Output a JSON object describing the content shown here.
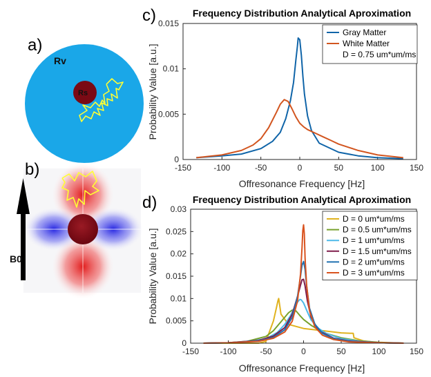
{
  "panels": {
    "a": {
      "letter": "a)",
      "outer_label": "Rv",
      "inner_label": "Rs",
      "outer_color": "#1aa7e8",
      "inner_color": "#7a0a14",
      "walk_color": "#ffff33"
    },
    "b": {
      "letter": "b)",
      "field_label": "B0"
    },
    "c": {
      "letter": "c)"
    },
    "d": {
      "letter": "d)"
    }
  },
  "chart_data": [
    {
      "type": "line",
      "title": "Frequency Distribution Analytical Aproximation",
      "xlabel": "Offresonance Frequency [Hz]",
      "ylabel": "Probability Value [a.u.]",
      "xlim": [
        -150,
        150
      ],
      "ylim": [
        0,
        0.015
      ],
      "xticks": [
        "-150",
        "-100",
        "-50",
        "0",
        "50",
        "100",
        "150"
      ],
      "yticks": [
        "0",
        "0.005",
        "0.01",
        "0.015"
      ],
      "grid": false,
      "legend_position": "top-right",
      "legend_note": "D = 0.75 um*um/ms",
      "series": [
        {
          "name": "Gray Matter",
          "color": "#0f64a8",
          "x": [
            -133,
            -100,
            -75,
            -50,
            -35,
            -25,
            -18,
            -12,
            -8,
            -5,
            -3,
            -2,
            0,
            2,
            4,
            6,
            10,
            15,
            25,
            50,
            75,
            100,
            133
          ],
          "y": [
            0.0002,
            0.0004,
            0.0006,
            0.0012,
            0.002,
            0.003,
            0.0045,
            0.0065,
            0.0085,
            0.011,
            0.0125,
            0.0134,
            0.0132,
            0.0115,
            0.0092,
            0.0072,
            0.0048,
            0.0032,
            0.0018,
            0.0008,
            0.0004,
            0.0002,
            0.0001
          ]
        },
        {
          "name": "White Matter",
          "color": "#d2551f",
          "x": [
            -133,
            -100,
            -75,
            -60,
            -50,
            -40,
            -30,
            -25,
            -20,
            -15,
            -10,
            -5,
            0,
            5,
            10,
            20,
            30,
            40,
            50,
            75,
            100,
            133
          ],
          "y": [
            0.0002,
            0.0005,
            0.001,
            0.0016,
            0.0023,
            0.0035,
            0.0052,
            0.0061,
            0.0066,
            0.0064,
            0.0056,
            0.0047,
            0.004,
            0.0036,
            0.0033,
            0.0029,
            0.0025,
            0.0021,
            0.0017,
            0.001,
            0.0005,
            0.0002
          ]
        }
      ]
    },
    {
      "type": "line",
      "title": "Frequency Distribution Analytical Aproximation",
      "xlabel": "Offresonance Frequency [Hz]",
      "ylabel": "Probability Value [a.u.]",
      "xlim": [
        -150,
        150
      ],
      "ylim": [
        0,
        0.03
      ],
      "xticks": [
        "-150",
        "-100",
        "-50",
        "0",
        "50",
        "100",
        "150"
      ],
      "yticks": [
        "0",
        "0.005",
        "0.01",
        "0.015",
        "0.02",
        "0.025",
        "0.03"
      ],
      "grid": false,
      "legend_position": "top-right",
      "series": [
        {
          "name": "D = 0 um*um/ms",
          "color": "#e0b21e",
          "x": [
            -133,
            -80,
            -60,
            -50,
            -40,
            -36,
            -34,
            -33,
            -30,
            -20,
            0,
            30,
            50,
            66,
            67,
            80,
            100,
            133
          ],
          "y": [
            0,
            0,
            0,
            0.0004,
            0.005,
            0.008,
            0.0095,
            0.01,
            0.0065,
            0.0042,
            0.0033,
            0.0027,
            0.0023,
            0.0022,
            0.0012,
            0.0005,
            0.0001,
            0
          ]
        },
        {
          "name": "D = 0.5 um*um/ms",
          "color": "#77a12c",
          "x": [
            -133,
            -100,
            -75,
            -50,
            -40,
            -30,
            -20,
            -15,
            -10,
            -5,
            0,
            10,
            20,
            30,
            50,
            75,
            100,
            133
          ],
          "y": [
            0,
            0.0001,
            0.0004,
            0.0015,
            0.0028,
            0.0048,
            0.0068,
            0.0074,
            0.0072,
            0.0062,
            0.0053,
            0.004,
            0.003,
            0.0022,
            0.0012,
            0.0005,
            0.0002,
            0
          ]
        },
        {
          "name": "D = 1 um*um/ms",
          "color": "#4cb8e8",
          "x": [
            -133,
            -100,
            -75,
            -50,
            -35,
            -25,
            -18,
            -12,
            -8,
            -5,
            -3,
            0,
            5,
            10,
            20,
            30,
            50,
            75,
            100,
            133
          ],
          "y": [
            0,
            0.0001,
            0.0003,
            0.001,
            0.0024,
            0.0042,
            0.006,
            0.008,
            0.0092,
            0.0098,
            0.0097,
            0.009,
            0.007,
            0.0052,
            0.0033,
            0.0022,
            0.001,
            0.0004,
            0.0001,
            0
          ]
        },
        {
          "name": "D = 1.5 um*um/ms",
          "color": "#7e1b4b",
          "x": [
            -133,
            -100,
            -60,
            -40,
            -25,
            -15,
            -8,
            -4,
            -2,
            0,
            2,
            5,
            10,
            20,
            40,
            60,
            100,
            133
          ],
          "y": [
            0,
            0.0001,
            0.0006,
            0.0016,
            0.0035,
            0.0065,
            0.0105,
            0.013,
            0.0142,
            0.0143,
            0.0128,
            0.0095,
            0.0058,
            0.0028,
            0.0011,
            0.0005,
            0.0001,
            0
          ]
        },
        {
          "name": "D = 2 um*um/ms",
          "color": "#1f70b0",
          "x": [
            -133,
            -100,
            -60,
            -40,
            -25,
            -15,
            -8,
            -4,
            -2,
            0,
            2,
            4,
            8,
            15,
            25,
            40,
            60,
            100,
            133
          ],
          "y": [
            0,
            0.0001,
            0.0005,
            0.0013,
            0.003,
            0.0058,
            0.0105,
            0.015,
            0.0175,
            0.0183,
            0.0165,
            0.0128,
            0.0078,
            0.0042,
            0.0022,
            0.001,
            0.0004,
            0.0001,
            0
          ]
        },
        {
          "name": "D = 3 um*um/ms",
          "color": "#d9521e",
          "x": [
            -133,
            -100,
            -60,
            -40,
            -25,
            -15,
            -8,
            -4,
            -2,
            -1,
            0,
            1,
            2,
            4,
            8,
            15,
            25,
            40,
            60,
            100,
            133
          ],
          "y": [
            0,
            0.0001,
            0.0004,
            0.0011,
            0.0025,
            0.0049,
            0.0095,
            0.0155,
            0.0215,
            0.0252,
            0.0265,
            0.0245,
            0.019,
            0.013,
            0.0072,
            0.0036,
            0.0018,
            0.0008,
            0.0003,
            0.0001,
            0
          ]
        }
      ]
    }
  ]
}
